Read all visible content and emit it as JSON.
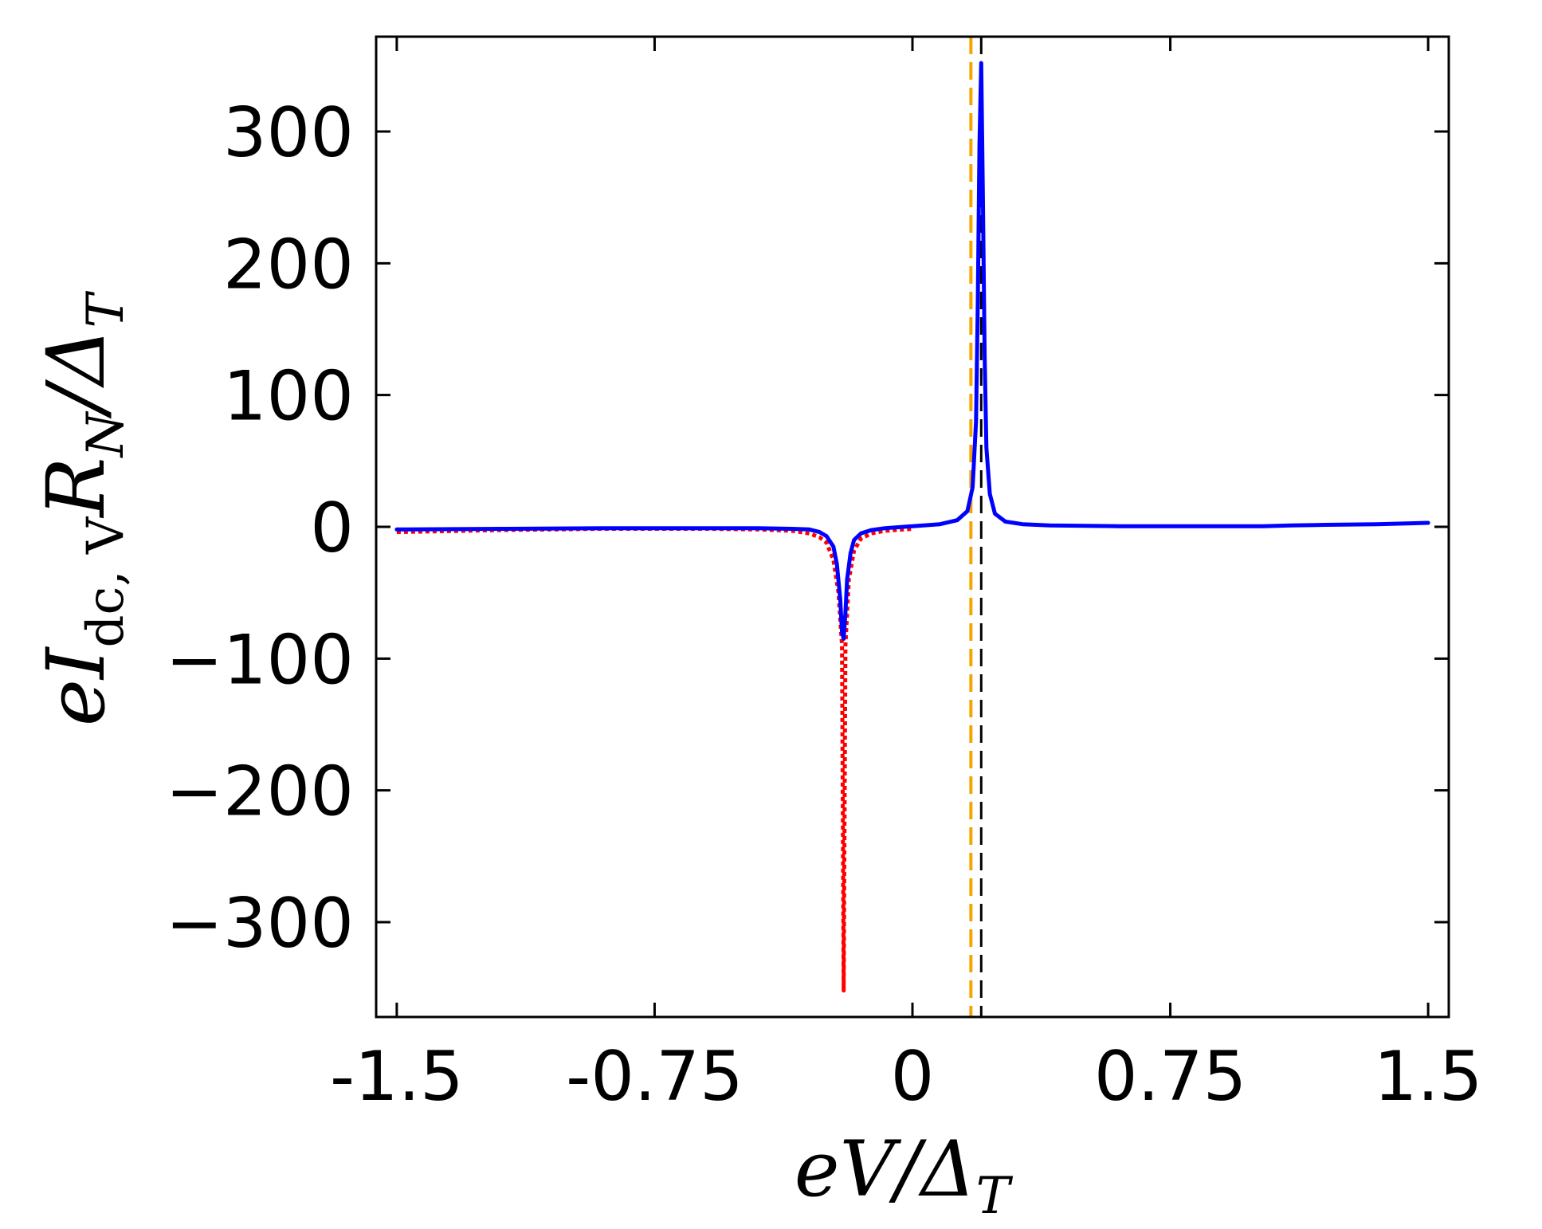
{
  "chart_data": {
    "type": "line",
    "title": "",
    "xlabel": {
      "main": "eV/Δ",
      "sub": "T"
    },
    "ylabel": {
      "pre": "eI",
      "sub1": "dc, V",
      "mid": "R",
      "sub2": "N",
      "post": "/Δ",
      "sub3": "T"
    },
    "xlim": [
      -1.56,
      1.56
    ],
    "ylim": [
      -372,
      372
    ],
    "x_ticks": [
      -1.5,
      -0.75,
      0,
      0.75,
      1.5
    ],
    "x_tick_labels": [
      "-1.5",
      "-0.75",
      "0",
      "0.75",
      "1.5"
    ],
    "y_ticks": [
      -300,
      -200,
      -100,
      0,
      100,
      200,
      300
    ],
    "y_tick_labels": [
      "−300",
      "−200",
      "−100",
      "0",
      "100",
      "200",
      "300"
    ],
    "grid": false,
    "vertical_lines": [
      {
        "x": 0.17,
        "color": "#f5a500",
        "style": "dashed"
      },
      {
        "x": 0.2,
        "color": "#000000",
        "style": "dashed"
      }
    ],
    "series": [
      {
        "color": "#ff0000",
        "style": "dotted",
        "x": [
          -1.5,
          -1.2,
          -0.9,
          -0.6,
          -0.45,
          -0.35,
          -0.3,
          -0.27,
          -0.25,
          -0.23,
          -0.215,
          -0.205,
          -0.2,
          -0.195,
          -0.185,
          -0.17,
          -0.15,
          -0.12,
          -0.08,
          0.0
        ],
        "y": [
          -4,
          -2.5,
          -1.5,
          -1.5,
          -2,
          -3,
          -5,
          -8,
          -12,
          -25,
          -50,
          -90,
          -352,
          -90,
          -40,
          -18,
          -9,
          -5,
          -3,
          -1.5
        ]
      },
      {
        "color": "#0000ff",
        "style": "solid",
        "x": [
          -1.5,
          -1.2,
          -0.9,
          -0.6,
          -0.45,
          -0.35,
          -0.3,
          -0.27,
          -0.25,
          -0.23,
          -0.22,
          -0.21,
          -0.205,
          -0.2,
          -0.195,
          -0.19,
          -0.18,
          -0.17,
          -0.15,
          -0.12,
          -0.08,
          0.0,
          0.08,
          0.13,
          0.16,
          0.175,
          0.185,
          0.19,
          0.195,
          0.2,
          0.205,
          0.21,
          0.215,
          0.225,
          0.24,
          0.27,
          0.32,
          0.4,
          0.6,
          0.9,
          1.02,
          1.1,
          1.2,
          1.35,
          1.5
        ],
        "y": [
          -2,
          -1.5,
          -1,
          -1,
          -1,
          -1.5,
          -2,
          -4,
          -7,
          -15,
          -28,
          -55,
          -80,
          -85,
          -65,
          -40,
          -20,
          -10,
          -5,
          -2.5,
          -1,
          0.5,
          2,
          5,
          12,
          30,
          80,
          170,
          290,
          352,
          250,
          130,
          60,
          25,
          10,
          4,
          2,
          1,
          0.5,
          0.5,
          0.5,
          1,
          1.5,
          2,
          3
        ]
      }
    ]
  }
}
